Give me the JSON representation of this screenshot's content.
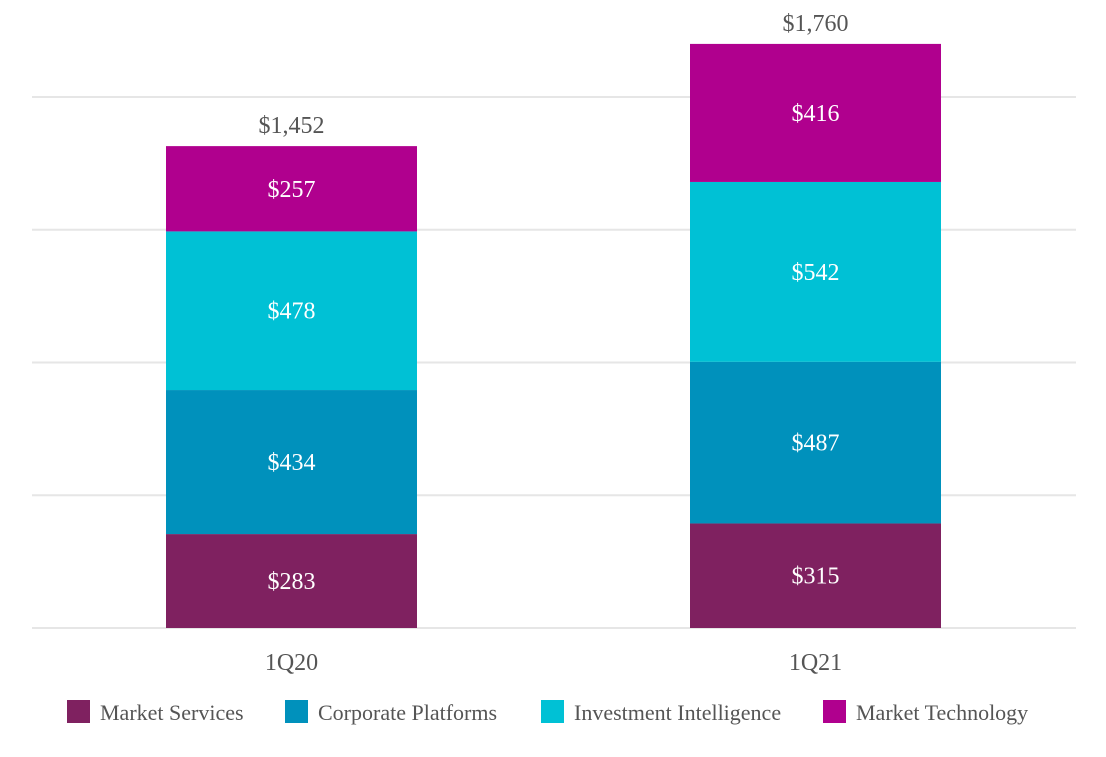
{
  "chart_data": {
    "type": "bar",
    "stacked": true,
    "title": "",
    "xlabel": "",
    "ylabel": "",
    "ylim": [
      0,
      1600
    ],
    "grid": true,
    "gridlines": [
      0,
      400,
      800,
      1200,
      1600
    ],
    "categories": [
      "1Q20",
      "1Q21"
    ],
    "totals": [
      1452,
      1760
    ],
    "total_labels": [
      "$1,452",
      "$1,760"
    ],
    "series": [
      {
        "name": "Market Services",
        "color": "#7f2160",
        "values": [
          283,
          315
        ],
        "labels": [
          "$283",
          "$315"
        ]
      },
      {
        "name": "Corporate Platforms",
        "color": "#0091bc",
        "values": [
          434,
          487
        ],
        "labels": [
          "$434",
          "$487"
        ]
      },
      {
        "name": "Investment Intelligence",
        "color": "#00c1d5",
        "values": [
          478,
          542
        ],
        "labels": [
          "$478",
          "$542"
        ]
      },
      {
        "name": "Market Technology",
        "color": "#b0008e",
        "values": [
          257,
          416
        ],
        "labels": [
          "$257",
          "$416"
        ]
      }
    ],
    "legend_position": "bottom"
  }
}
